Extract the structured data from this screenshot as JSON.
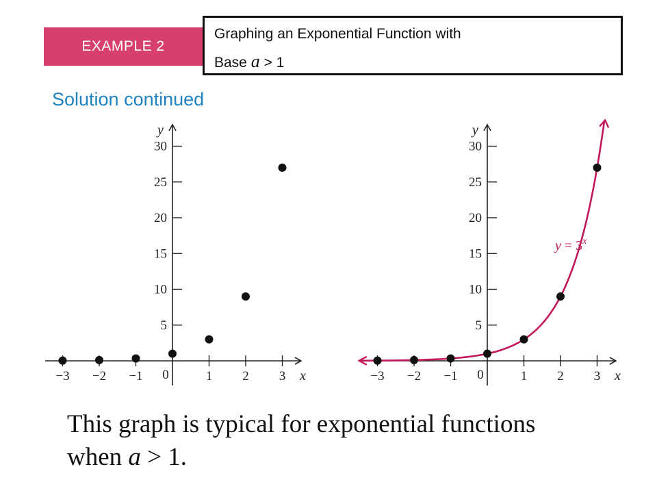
{
  "header": {
    "example_label": "EXAMPLE 2",
    "title_line1": "Graphing an Exponential Function with",
    "title_line2_prefix": "Base",
    "title_line2_var": "a",
    "title_line2_suffix": "> 1"
  },
  "subtitle": "Solution continued",
  "caption": {
    "line1": "This graph is typical for exponential functions",
    "line2_prefix": "when",
    "line2_var": "a",
    "line2_suffix": "> 1."
  },
  "colors": {
    "badge": "#d63f6e",
    "subtitle": "#1f82c0",
    "curve": "#c2185b",
    "axis": "#222222"
  },
  "chart_data": [
    {
      "type": "scatter",
      "title": "",
      "xlabel": "x",
      "ylabel": "y",
      "x_ticks": [
        -3,
        -2,
        -1,
        1,
        2,
        3
      ],
      "x_tick_labels": [
        "−3",
        "−2",
        "−1",
        "1",
        "2",
        "3"
      ],
      "y_ticks": [
        5,
        10,
        15,
        20,
        25,
        30
      ],
      "y_tick_labels": [
        "5",
        "10",
        "15",
        "20",
        "25",
        "30"
      ],
      "origin_label": "0",
      "xlim": [
        -3.5,
        3.5
      ],
      "ylim": [
        0,
        32
      ],
      "grid": false,
      "points": [
        {
          "x": -3,
          "y": 0.037
        },
        {
          "x": -2,
          "y": 0.111
        },
        {
          "x": -1,
          "y": 0.333
        },
        {
          "x": 0,
          "y": 1
        },
        {
          "x": 1,
          "y": 3
        },
        {
          "x": 2,
          "y": 9
        },
        {
          "x": 3,
          "y": 27
        }
      ]
    },
    {
      "type": "line",
      "title": "",
      "xlabel": "x",
      "ylabel": "y",
      "x_ticks": [
        -3,
        -2,
        -1,
        1,
        2,
        3
      ],
      "x_tick_labels": [
        "−3",
        "−2",
        "−1",
        "1",
        "2",
        "3"
      ],
      "y_ticks": [
        5,
        10,
        15,
        20,
        25,
        30
      ],
      "y_tick_labels": [
        "5",
        "10",
        "15",
        "20",
        "25",
        "30"
      ],
      "origin_label": "0",
      "xlim": [
        -3.5,
        3.5
      ],
      "ylim": [
        0,
        32
      ],
      "grid": false,
      "function_label": "y = 3",
      "function_exponent": "x",
      "curve_domain": [
        -3.5,
        3.2
      ],
      "points": [
        {
          "x": -3,
          "y": 0.037
        },
        {
          "x": -2,
          "y": 0.111
        },
        {
          "x": -1,
          "y": 0.333
        },
        {
          "x": 0,
          "y": 1
        },
        {
          "x": 1,
          "y": 3
        },
        {
          "x": 2,
          "y": 9
        },
        {
          "x": 3,
          "y": 27
        }
      ]
    }
  ]
}
